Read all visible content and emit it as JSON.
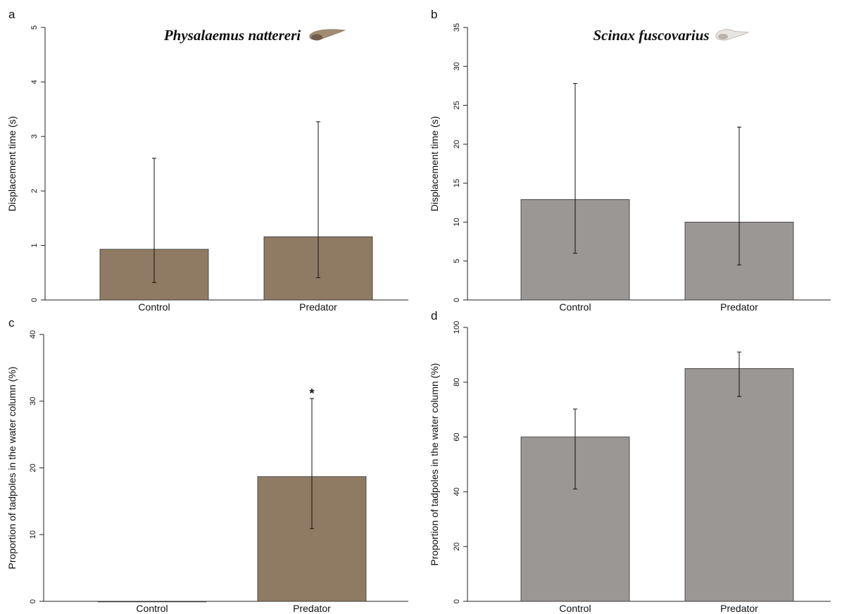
{
  "chart_data": [
    {
      "type": "bar",
      "panel_label": "a",
      "title": "Physalaemus nattereri",
      "y_label": "Displacement time (s)",
      "categories": [
        "Control",
        "Predator"
      ],
      "values": [
        0.93,
        1.16
      ],
      "error_lower": [
        0.32,
        0.41
      ],
      "error_upper": [
        2.6,
        3.27
      ],
      "color": "#8f7b63",
      "ylim": [
        0,
        5
      ],
      "yticks": [
        0,
        1,
        2,
        3,
        4,
        5
      ]
    },
    {
      "type": "bar",
      "panel_label": "b",
      "title": "Scinax fuscovarius",
      "y_label": "Displacement time (s)",
      "categories": [
        "Control",
        "Predator"
      ],
      "values": [
        12.9,
        10.0
      ],
      "error_lower": [
        6.0,
        4.5
      ],
      "error_upper": [
        27.8,
        22.2
      ],
      "color": "#9b9794",
      "ylim": [
        0,
        35
      ],
      "yticks": [
        0,
        5,
        10,
        15,
        20,
        25,
        30,
        35
      ]
    },
    {
      "type": "bar",
      "panel_label": "c",
      "y_label": "Proportion of tadpoles in the water column (%)",
      "categories": [
        "Control",
        "Predator"
      ],
      "values": [
        0,
        18.7
      ],
      "error_lower": [
        null,
        10.9
      ],
      "error_upper": [
        null,
        30.4
      ],
      "annotations": [
        {
          "text": "*",
          "category": "Predator"
        }
      ],
      "color": "#8f7b63",
      "ylim": [
        0,
        40
      ],
      "yticks": [
        0,
        10,
        20,
        30,
        40
      ]
    },
    {
      "type": "bar",
      "panel_label": "d",
      "y_label": "Proportion of tadpoles in the water column (%)",
      "categories": [
        "Control",
        "Predator"
      ],
      "values": [
        60,
        85
      ],
      "error_lower": [
        41,
        74.8
      ],
      "error_upper": [
        70.2,
        91
      ],
      "color": "#9b9794",
      "ylim": [
        0,
        100
      ],
      "yticks": [
        0,
        20,
        40,
        60,
        80,
        100
      ]
    }
  ]
}
